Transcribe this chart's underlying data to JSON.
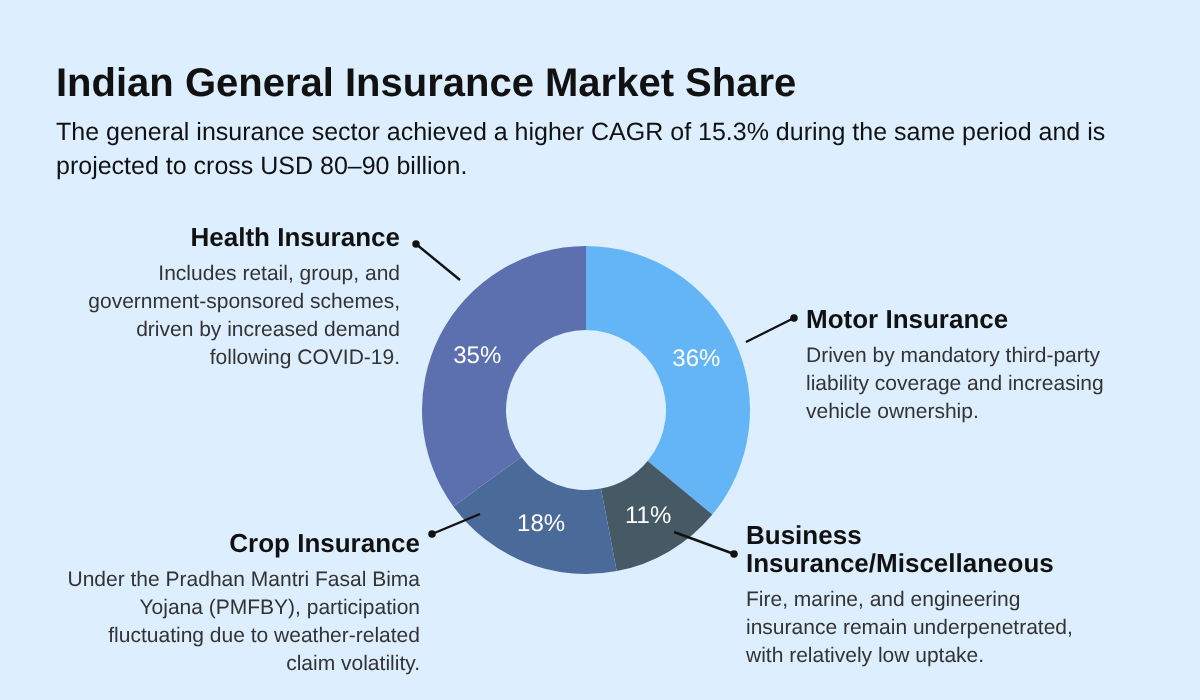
{
  "chart_data": {
    "type": "donut",
    "title": "Indian General Insurance Market Share",
    "subtitle": "The general insurance sector achieved a higher CAGR of 15.3% during the same period and is projected to cross USD 80–90 billion.",
    "categories": [
      "Motor Insurance",
      "Business Insurance/Miscellaneous",
      "Crop Insurance",
      "Health Insurance"
    ],
    "values": [
      36,
      11,
      18,
      35
    ],
    "value_labels": [
      "36%",
      "11%",
      "18%",
      "35%"
    ],
    "colors": [
      "#64b5f6",
      "#455a64",
      "#4a6a9a",
      "#5c6fae"
    ],
    "annotations": [
      "Driven by mandatory third-party liability coverage and increasing vehicle ownership.",
      "Fire, marine, and engineering insurance remain underpenetrated, with relatively low uptake.",
      "Under the Pradhan Mantri Fasal Bima Yojana (PMFBY), participation fluctuating due to weather-related claim volatility.",
      "Includes retail, group, and government-sponsored schemes, driven by increased demand following COVID-19."
    ]
  }
}
